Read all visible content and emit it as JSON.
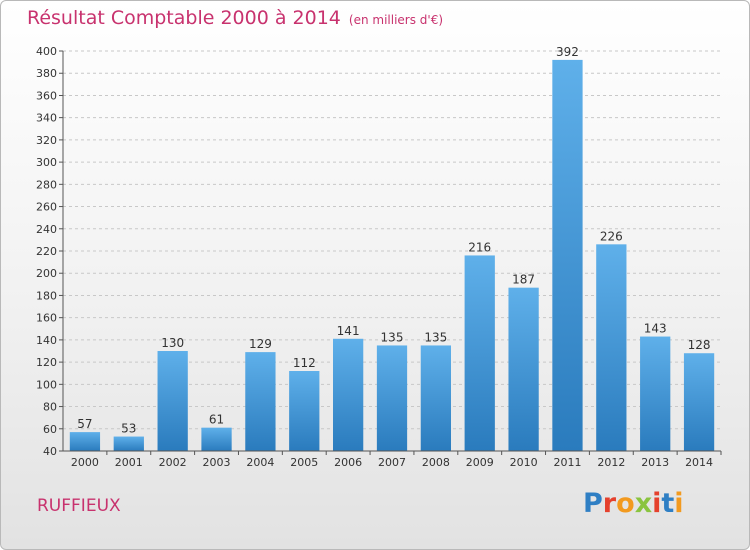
{
  "header": {
    "title": "Résultat Comptable 2000 à 2014",
    "subtitle": "(en milliers d'€)"
  },
  "footer": {
    "city": "RUFFIEUX",
    "logo": "Proxiti"
  },
  "colors": {
    "accent": "#c8326e",
    "bar_top": "#5fb0ea",
    "bar_bottom": "#2a7bbd",
    "grid": "#c8c8c8"
  },
  "chart_data": {
    "type": "bar",
    "categories": [
      "2000",
      "2001",
      "2002",
      "2003",
      "2004",
      "2005",
      "2006",
      "2007",
      "2008",
      "2009",
      "2010",
      "2011",
      "2012",
      "2013",
      "2014"
    ],
    "values": [
      57,
      53,
      130,
      61,
      129,
      112,
      141,
      135,
      135,
      216,
      187,
      392,
      226,
      143,
      128
    ],
    "ylim": [
      40,
      400
    ],
    "yticks": [
      40,
      60,
      80,
      100,
      120,
      140,
      160,
      180,
      200,
      220,
      240,
      260,
      280,
      300,
      320,
      340,
      360,
      380,
      400
    ],
    "grid": "horizontal dashed",
    "title": "Résultat Comptable 2000 à 2014",
    "xlabel": "",
    "ylabel": ""
  }
}
